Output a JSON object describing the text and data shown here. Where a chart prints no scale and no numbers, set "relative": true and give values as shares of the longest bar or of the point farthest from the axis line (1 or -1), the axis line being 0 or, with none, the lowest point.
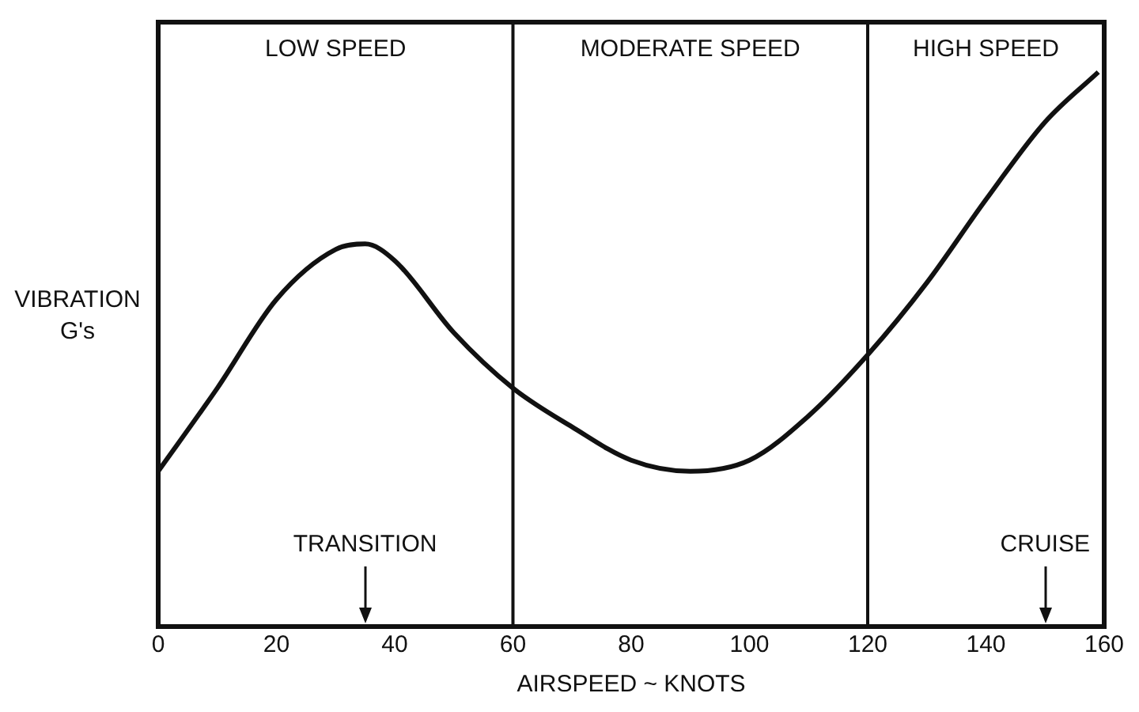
{
  "chart_data": {
    "type": "line",
    "relative": true,
    "xlabel": "AIRSPEED ~ KNOTS",
    "ylabel": "VIBRATION G's",
    "x": [
      0,
      10,
      20,
      30,
      35,
      40,
      50,
      60,
      70,
      80,
      90,
      100,
      110,
      120,
      130,
      140,
      150,
      159
    ],
    "series": [
      {
        "color": "#111111",
        "values": [
          0.28,
          0.43,
          0.59,
          0.68,
          0.69,
          0.66,
          0.53,
          0.43,
          0.36,
          0.3,
          0.28,
          0.3,
          0.38,
          0.49,
          0.62,
          0.77,
          0.91,
          1
        ]
      }
    ],
    "xlim": [
      0,
      160
    ],
    "xticks": [
      0,
      20,
      40,
      60,
      80,
      100,
      120,
      140,
      160
    ],
    "legend": false,
    "marker": "none",
    "line_style": "solid",
    "ref_lines": [
      {
        "axis": "x",
        "value": 60
      },
      {
        "axis": "x",
        "value": 120
      }
    ],
    "annotations": [
      "LOW SPEED",
      "MODERATE SPEED",
      "HIGH SPEED",
      {
        "text": "TRANSITION",
        "x": 35
      },
      {
        "text": "CRUISE",
        "x": 150
      }
    ]
  }
}
